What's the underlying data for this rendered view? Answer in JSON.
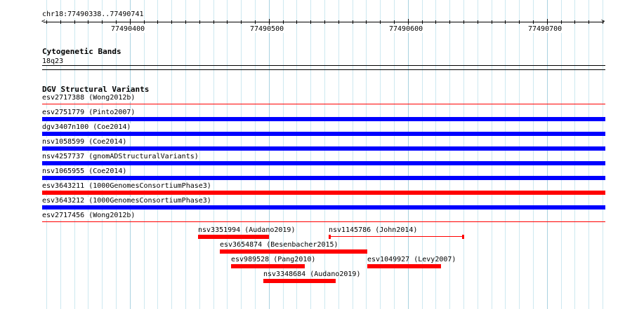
{
  "ruler": {
    "region": "chr18:77490338..77490741",
    "tick_labels": [
      "77490400",
      "77490500",
      "77490600",
      "77490700"
    ]
  },
  "cyto": {
    "title": "Cytogenetic Bands",
    "band": "18q23"
  },
  "dgv": {
    "title": "DGV Structural Variants",
    "full_tracks": [
      {
        "label": "esv2717388 (Wong2012b)",
        "color": "#ff0000",
        "style": "thin"
      },
      {
        "label": "esv2751779 (Pinto2007)",
        "color": "#0000ff",
        "style": "thick"
      },
      {
        "label": "dgv3407n100 (Coe2014)",
        "color": "#0000ff",
        "style": "thick"
      },
      {
        "label": "nsv1058599 (Coe2014)",
        "color": "#0000ff",
        "style": "thick"
      },
      {
        "label": "nsv4257737 (gnomADStructuralVariants)",
        "color": "#0000ff",
        "style": "thick"
      },
      {
        "label": "nsv1065955 (Coe2014)",
        "color": "#0000ff",
        "style": "thick"
      },
      {
        "label": "esv3643211 (1000GenomesConsortiumPhase3)",
        "color": "#ff0000",
        "style": "thick"
      },
      {
        "label": "esv3643212 (1000GenomesConsortiumPhase3)",
        "color": "#0000ff",
        "style": "thick"
      },
      {
        "label": "esv2717456 (Wong2012b)",
        "color": "#ff0000",
        "style": "thin"
      }
    ],
    "partial_features": [
      {
        "label": "nsv3351994 (Audano2019)",
        "start": 77490449,
        "end": 77490500,
        "color": "#ff0000",
        "style": "thick"
      },
      {
        "label": "nsv1145786 (John2014)",
        "start": 77490543,
        "end": 77490640,
        "color": "#ff0000",
        "style": "thin"
      },
      {
        "label": "esv3654874 (Besenbacher2015)",
        "start": 77490465,
        "end": 77490571,
        "color": "#ff0000",
        "style": "thick"
      },
      {
        "label": "esv989528 (Pang2010)",
        "start": 77490473,
        "end": 77490526,
        "color": "#ff0000",
        "style": "thick"
      },
      {
        "label": "esv1049927 (Levy2007)",
        "start": 77490571,
        "end": 77490624,
        "color": "#ff0000",
        "style": "thick"
      },
      {
        "label": "nsv3348684 (Audano2019)",
        "start": 77490496,
        "end": 77490548,
        "color": "#ff0000",
        "style": "thick"
      }
    ]
  }
}
